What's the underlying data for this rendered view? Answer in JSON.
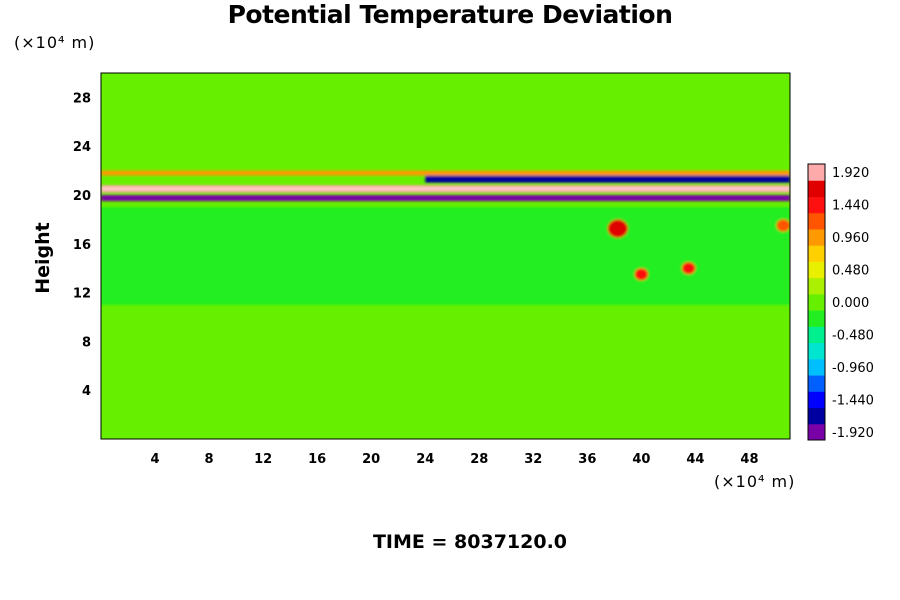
{
  "chart_data": {
    "type": "heatmap",
    "title": "Potential Temperature Deviation",
    "ylabel": "Height",
    "y_unit": "(×10⁴ m)",
    "x_unit": "(×10⁴ m)",
    "footer": "TIME = 8037120.0",
    "x_ticks": [
      "4",
      "8",
      "12",
      "16",
      "20",
      "24",
      "28",
      "32",
      "36",
      "40",
      "44",
      "48"
    ],
    "x_tick_values": [
      4,
      8,
      12,
      16,
      20,
      24,
      28,
      32,
      36,
      40,
      44,
      48
    ],
    "y_ticks": [
      "4",
      "8",
      "12",
      "16",
      "20",
      "24",
      "28"
    ],
    "y_tick_values": [
      4,
      8,
      12,
      16,
      20,
      24,
      28
    ],
    "xlim": [
      0,
      51
    ],
    "ylim": [
      0,
      30
    ],
    "colorbar": {
      "labels": [
        "1.920",
        "1.440",
        "0.960",
        "0.480",
        "0.000",
        "-0.480",
        "-0.960",
        "-1.440",
        "-1.920"
      ],
      "label_values": [
        1.92,
        1.44,
        0.96,
        0.48,
        0.0,
        -0.48,
        -0.96,
        -1.44,
        -1.92
      ],
      "range": [
        -2.04,
        2.04
      ],
      "colors": [
        "#7a00a8",
        "#0000a0",
        "#0000ff",
        "#0060ff",
        "#00bfff",
        "#00e5d0",
        "#00f090",
        "#22ee22",
        "#66f000",
        "#aaf000",
        "#e8f000",
        "#ffd000",
        "#ff9900",
        "#ff5500",
        "#ff1010",
        "#e00000",
        "#ffaaaa"
      ]
    },
    "background_value": 0.1,
    "features": [
      {
        "desc": "upper quiet band",
        "x": [
          0,
          51
        ],
        "y": [
          24,
          30
        ],
        "value": 0.0
      },
      {
        "desc": "main positive layer",
        "x": [
          0,
          51
        ],
        "y": [
          20.2,
          20.8
        ],
        "value": 1.9
      },
      {
        "desc": "main negative layer",
        "x": [
          0,
          51
        ],
        "y": [
          19.5,
          20.0
        ],
        "value": -1.9
      },
      {
        "desc": "upper negative wave",
        "x": [
          24,
          51
        ],
        "y": [
          21.0,
          21.6
        ],
        "value": -1.6
      },
      {
        "desc": "upper positive wave",
        "x": [
          0,
          51
        ],
        "y": [
          21.6,
          22.0
        ],
        "value": 1.0
      },
      {
        "desc": "turbulent zone",
        "x": [
          0,
          51
        ],
        "y": [
          11,
          19
        ],
        "value": -0.3
      },
      {
        "desc": "positive patch",
        "x": [
          37.5,
          39
        ],
        "y": [
          16.5,
          18
        ],
        "value": 1.6
      },
      {
        "desc": "positive patch",
        "x": [
          39.5,
          40.5
        ],
        "y": [
          13,
          14
        ],
        "value": 1.5
      },
      {
        "desc": "positive patch",
        "x": [
          43,
          44
        ],
        "y": [
          13.5,
          14.5
        ],
        "value": 1.4
      },
      {
        "desc": "positive patch",
        "x": [
          50,
          51
        ],
        "y": [
          17,
          18
        ],
        "value": 1.3
      }
    ]
  }
}
